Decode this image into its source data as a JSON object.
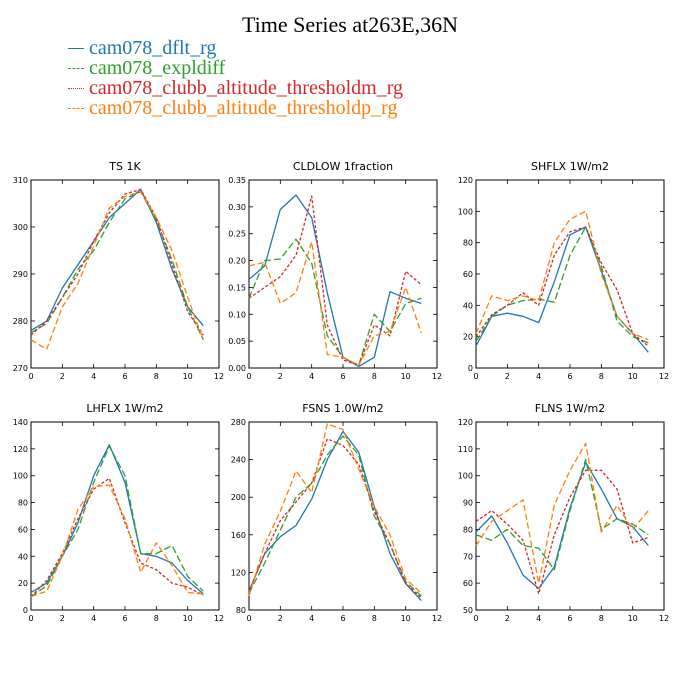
{
  "figure": {
    "title": "Time Series at263E,36N"
  },
  "legend": [
    {
      "name": "cam078_dflt_rg",
      "color": "#1f77b4",
      "dash": "none"
    },
    {
      "name": "cam078_expldiff",
      "color": "#2ca02c",
      "dash": "7,3"
    },
    {
      "name": "cam078_clubb_altitude_thresholdm_rg",
      "color": "#d62728",
      "dash": "3,2"
    },
    {
      "name": "cam078_clubb_altitude_thresholdp_rg",
      "color": "#ff7f0e",
      "dash": "6,3"
    }
  ],
  "chart_data": [
    {
      "type": "line",
      "title": "TS   1K",
      "x": [
        0,
        1,
        2,
        3,
        4,
        5,
        6,
        7,
        8,
        9,
        10,
        11
      ],
      "xlim": [
        0,
        12
      ],
      "xticks": [
        0,
        2,
        4,
        6,
        8,
        10,
        12
      ],
      "ylim": [
        270,
        310
      ],
      "yticks": [
        270,
        280,
        290,
        300,
        310
      ],
      "series": [
        {
          "name": "cam078_dflt_rg",
          "values": [
            278,
            280,
            287,
            292,
            297,
            302,
            305,
            308,
            301,
            291,
            283,
            279
          ]
        },
        {
          "name": "cam078_expldiff",
          "values": [
            277.5,
            279.5,
            285,
            291,
            295,
            301,
            306,
            307.5,
            301.5,
            293,
            283,
            276
          ]
        },
        {
          "name": "cam078_clubb_altitude_thresholdm_rg",
          "values": [
            277,
            280,
            285,
            290,
            297,
            303,
            307,
            308,
            302,
            292,
            282,
            277
          ]
        },
        {
          "name": "cam078_clubb_altitude_thresholdp_rg",
          "values": [
            276,
            274,
            283,
            288,
            296,
            304,
            306.5,
            307.5,
            302,
            295,
            285,
            276
          ]
        }
      ]
    },
    {
      "type": "line",
      "title": "CLDLOW   1fraction",
      "x": [
        0,
        1,
        2,
        3,
        4,
        5,
        6,
        7,
        8,
        9,
        10,
        11
      ],
      "xlim": [
        0,
        12
      ],
      "xticks": [
        0,
        2,
        4,
        6,
        8,
        10,
        12
      ],
      "ylim": [
        0,
        0.35
      ],
      "yticks": [
        0.0,
        0.05,
        0.1,
        0.15,
        0.2,
        0.25,
        0.3,
        0.35
      ],
      "series": [
        {
          "name": "cam078_dflt_rg",
          "values": [
            0.165,
            0.19,
            0.295,
            0.322,
            0.28,
            0.14,
            0.02,
            0.003,
            0.02,
            0.142,
            0.13,
            0.12
          ]
        },
        {
          "name": "cam078_expldiff",
          "values": [
            0.13,
            0.2,
            0.203,
            0.24,
            0.195,
            0.06,
            0.02,
            0.005,
            0.1,
            0.068,
            0.12,
            0.13
          ]
        },
        {
          "name": "cam078_clubb_altitude_thresholdm_rg",
          "values": [
            0.13,
            0.15,
            0.17,
            0.21,
            0.32,
            0.08,
            0.015,
            0.005,
            0.08,
            0.06,
            0.18,
            0.155
          ]
        },
        {
          "name": "cam078_clubb_altitude_thresholdp_rg",
          "values": [
            0.19,
            0.197,
            0.12,
            0.14,
            0.235,
            0.025,
            0.02,
            0.005,
            0.06,
            0.068,
            0.15,
            0.065
          ]
        }
      ]
    },
    {
      "type": "line",
      "title": "SHFLX   1W/m2",
      "x": [
        0,
        1,
        2,
        3,
        4,
        5,
        6,
        7,
        8,
        9,
        10,
        11
      ],
      "xlim": [
        0,
        12
      ],
      "xticks": [
        0,
        2,
        4,
        6,
        8,
        10,
        12
      ],
      "ylim": [
        0,
        120
      ],
      "yticks": [
        0,
        20,
        40,
        60,
        80,
        100,
        120
      ],
      "series": [
        {
          "name": "cam078_dflt_rg",
          "values": [
            14,
            33,
            35,
            33,
            29,
            55,
            85,
            90,
            62,
            33,
            22,
            10
          ]
        },
        {
          "name": "cam078_expldiff",
          "values": [
            17,
            33,
            40,
            43,
            44,
            42,
            72,
            90,
            65,
            30,
            20,
            16
          ]
        },
        {
          "name": "cam078_clubb_altitude_thresholdm_rg",
          "values": [
            20,
            34,
            40,
            48,
            40,
            72,
            87,
            90,
            67,
            50,
            22,
            14
          ]
        },
        {
          "name": "cam078_clubb_altitude_thresholdp_rg",
          "values": [
            22,
            46,
            43,
            46,
            43,
            80,
            95,
            100,
            60,
            33,
            22,
            18
          ]
        }
      ]
    },
    {
      "type": "line",
      "title": "LHFLX   1W/m2",
      "x": [
        0,
        1,
        2,
        3,
        4,
        5,
        6,
        7,
        8,
        9,
        10,
        11
      ],
      "xlim": [
        0,
        12
      ],
      "xticks": [
        0,
        2,
        4,
        6,
        8,
        10,
        12
      ],
      "ylim": [
        0,
        140
      ],
      "yticks": [
        0,
        20,
        40,
        60,
        80,
        100,
        120,
        140
      ],
      "series": [
        {
          "name": "cam078_dflt_rg",
          "values": [
            13,
            20,
            40,
            65,
            100,
            123,
            95,
            42,
            40,
            35,
            22,
            12
          ]
        },
        {
          "name": "cam078_expldiff",
          "values": [
            10,
            18,
            40,
            60,
            95,
            122,
            100,
            42,
            42,
            48,
            25,
            14
          ]
        },
        {
          "name": "cam078_clubb_altitude_thresholdm_rg",
          "values": [
            10,
            22,
            42,
            68,
            90,
            98,
            65,
            35,
            30,
            20,
            17,
            11
          ]
        },
        {
          "name": "cam078_clubb_altitude_thresholdp_rg",
          "values": [
            10,
            14,
            40,
            75,
            92,
            93,
            68,
            28,
            50,
            33,
            13,
            12
          ]
        }
      ]
    },
    {
      "type": "line",
      "title": "FSNS   1.0W/m2",
      "x": [
        0,
        1,
        2,
        3,
        4,
        5,
        6,
        7,
        8,
        9,
        10,
        11
      ],
      "xlim": [
        0,
        12
      ],
      "xticks": [
        0,
        2,
        4,
        6,
        8,
        10,
        12
      ],
      "ylim": [
        80,
        280
      ],
      "yticks": [
        80,
        120,
        160,
        200,
        240,
        280
      ],
      "series": [
        {
          "name": "cam078_dflt_rg",
          "values": [
            100,
            140,
            158,
            170,
            198,
            240,
            270,
            248,
            190,
            140,
            108,
            90
          ]
        },
        {
          "name": "cam078_expldiff",
          "values": [
            98,
            130,
            165,
            200,
            215,
            245,
            265,
            245,
            180,
            150,
            110,
            95
          ]
        },
        {
          "name": "cam078_clubb_altitude_thresholdm_rg",
          "values": [
            100,
            140,
            175,
            195,
            215,
            262,
            255,
            235,
            185,
            150,
            108,
            93
          ]
        },
        {
          "name": "cam078_clubb_altitude_thresholdp_rg",
          "values": [
            95,
            150,
            185,
            228,
            205,
            278,
            272,
            230,
            190,
            160,
            113,
            98
          ]
        }
      ]
    },
    {
      "type": "line",
      "title": "FLNS   1W/m2",
      "x": [
        0,
        1,
        2,
        3,
        4,
        5,
        6,
        7,
        8,
        9,
        10,
        11
      ],
      "xlim": [
        0,
        12
      ],
      "xticks": [
        0,
        2,
        4,
        6,
        8,
        10,
        12
      ],
      "ylim": [
        50,
        120
      ],
      "yticks": [
        50,
        60,
        70,
        80,
        90,
        100,
        110,
        120
      ],
      "series": [
        {
          "name": "cam078_dflt_rg",
          "values": [
            79,
            85,
            75,
            63,
            58,
            66,
            88,
            105,
            95,
            84,
            81,
            74
          ]
        },
        {
          "name": "cam078_expldiff",
          "values": [
            78,
            76,
            80,
            74,
            73,
            65,
            87,
            106,
            80,
            84,
            82,
            78
          ]
        },
        {
          "name": "cam078_clubb_altitude_thresholdm_rg",
          "values": [
            83,
            87,
            82,
            76,
            56,
            78,
            92,
            102,
            102,
            95,
            75,
            77
          ]
        },
        {
          "name": "cam078_clubb_altitude_thresholdp_rg",
          "values": [
            74,
            83,
            87,
            91,
            60,
            89,
            102,
            112,
            79,
            89,
            80,
            87
          ]
        }
      ]
    }
  ]
}
